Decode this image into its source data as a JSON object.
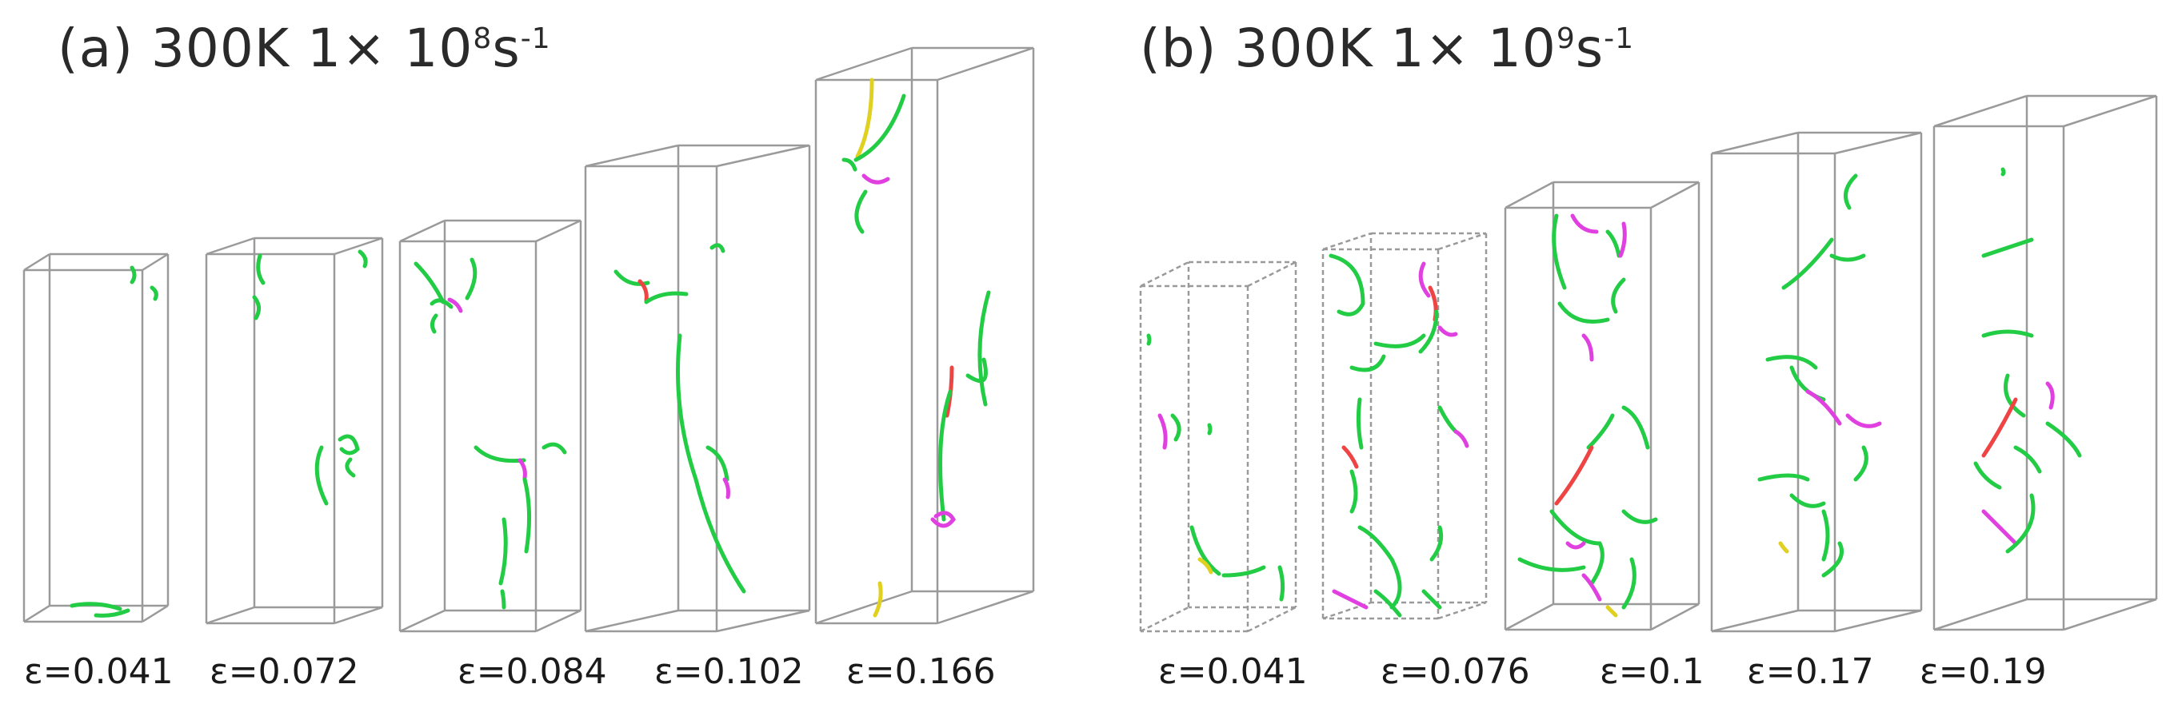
{
  "panels": [
    {
      "id": "a",
      "title_prefix": "(a) 300K 1× 10",
      "title_exp": "8",
      "title_unit": "s",
      "title_unit_exp": "-1",
      "strains": [
        "ε=0.041",
        "ε=0.072",
        "ε=0.084",
        "ε=0.102",
        "ε=0.166"
      ]
    },
    {
      "id": "b",
      "title_prefix": "(b) 300K 1× 10",
      "title_exp": "9",
      "title_unit": "s",
      "title_unit_exp": "-1",
      "strains": [
        "ε=0.041",
        "ε=0.076",
        "ε=0.1",
        "ε=0.17",
        "ε=0.19"
      ]
    }
  ],
  "colors": {
    "box_edge": "#9a9a9a",
    "dislocation_main": "#22cc44",
    "dislocation_magenta": "#e040e0",
    "dislocation_red": "#ee4444",
    "dislocation_yellow": "#e0d020"
  }
}
